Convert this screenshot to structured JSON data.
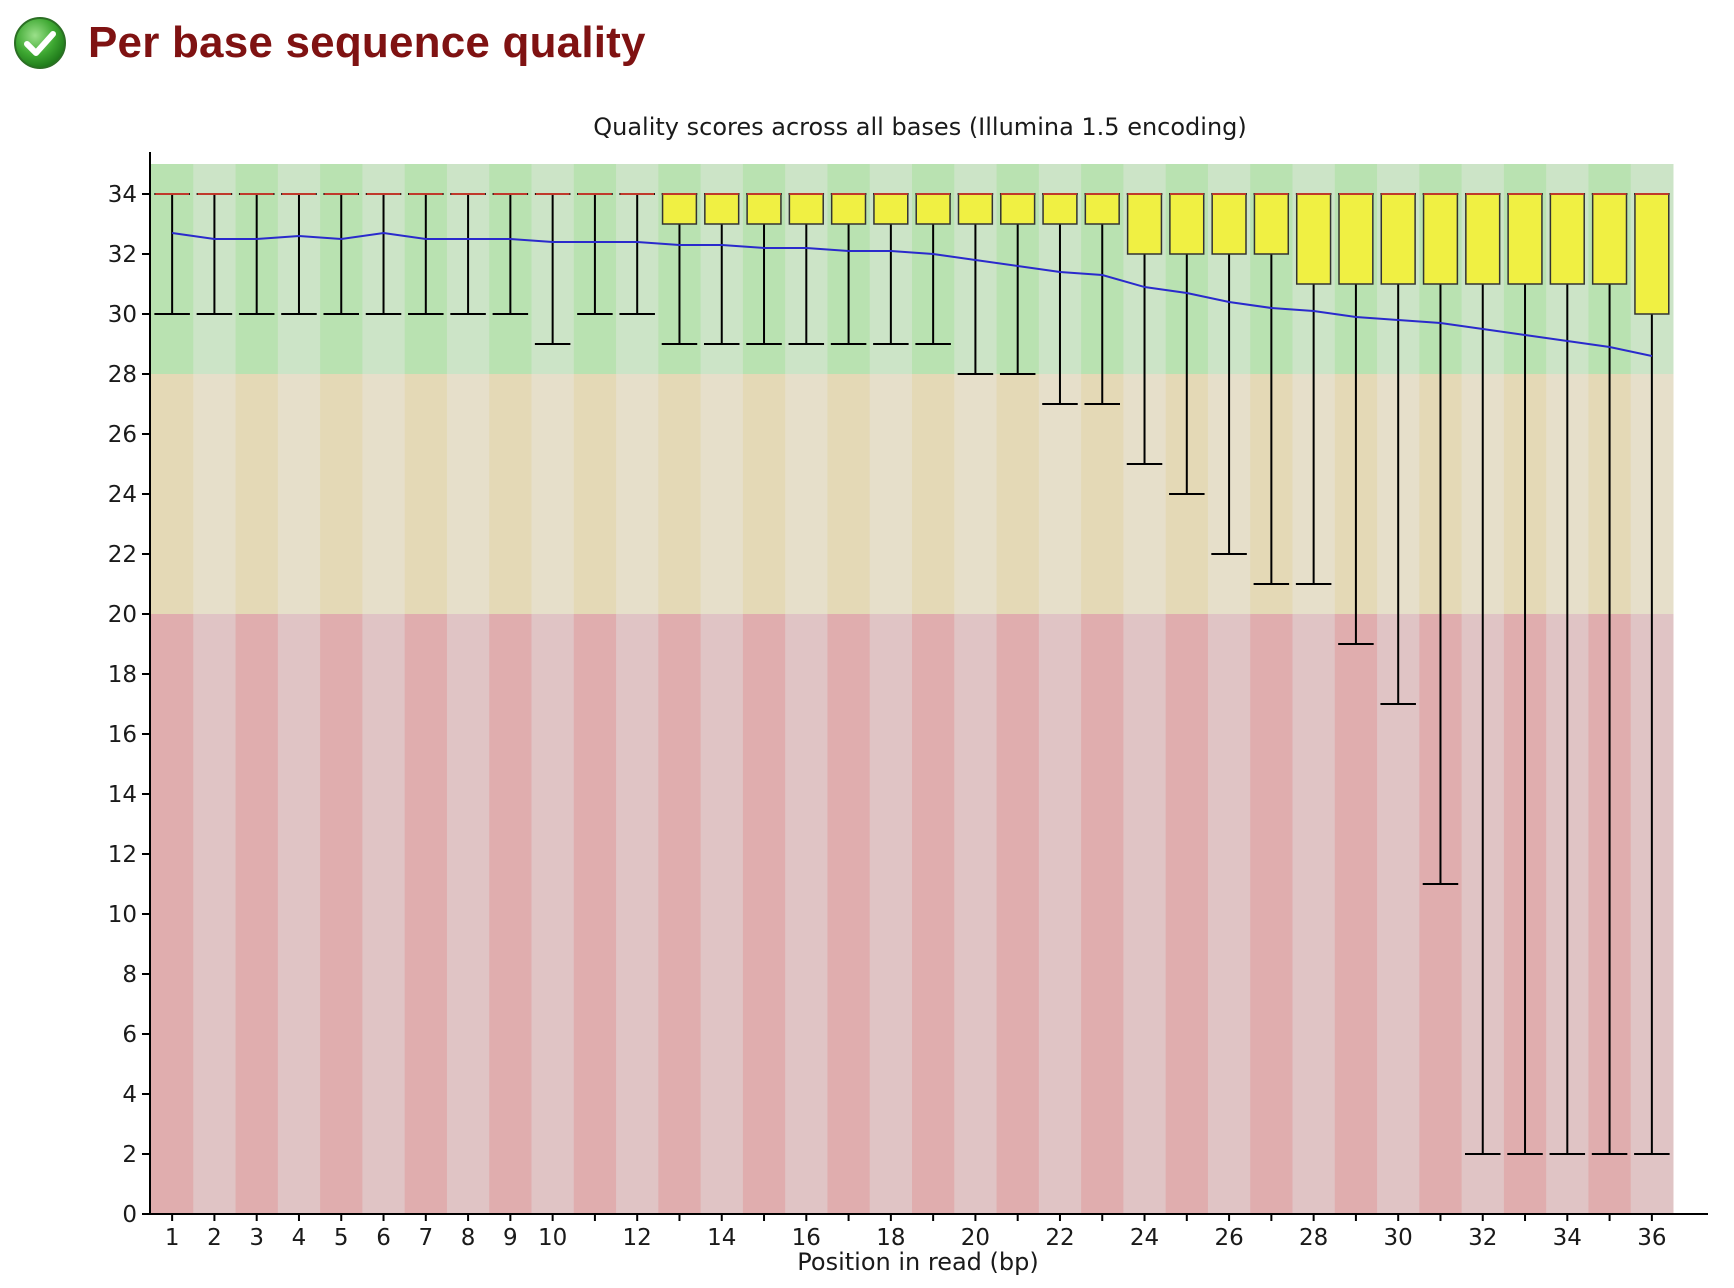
{
  "module": {
    "title": "Per base sequence quality",
    "status": "pass",
    "status_icon": "check-circle-icon"
  },
  "chart_data": {
    "type": "boxplot",
    "title": "Quality scores across all bases (Illumina 1.5 encoding)",
    "xlabel": "Position in read (bp)",
    "ylabel": "",
    "ylim": [
      0,
      35
    ],
    "ytick_values": [
      0,
      2,
      4,
      6,
      8,
      10,
      12,
      14,
      16,
      18,
      20,
      22,
      24,
      26,
      28,
      30,
      32,
      34
    ],
    "ytick_labels": [
      "0",
      "2",
      "4",
      "6",
      "8",
      "10",
      "12",
      "14",
      "16",
      "18",
      "20",
      "22",
      "24",
      "26",
      "28",
      "30",
      "32",
      "34"
    ],
    "xtick_labels": [
      "1",
      "2",
      "3",
      "4",
      "5",
      "6",
      "7",
      "8",
      "9",
      "10",
      "",
      "12",
      "",
      "14",
      "",
      "16",
      "",
      "18",
      "",
      "20",
      "",
      "22",
      "",
      "24",
      "",
      "26",
      "",
      "28",
      "",
      "30",
      "",
      "32",
      "",
      "34",
      "",
      "36"
    ],
    "positions": [
      1,
      2,
      3,
      4,
      5,
      6,
      7,
      8,
      9,
      10,
      11,
      12,
      13,
      14,
      15,
      16,
      17,
      18,
      19,
      20,
      21,
      22,
      23,
      24,
      25,
      26,
      27,
      28,
      29,
      30,
      31,
      32,
      33,
      34,
      35,
      36
    ],
    "q1": [
      34,
      34,
      34,
      34,
      34,
      34,
      34,
      34,
      34,
      34,
      34,
      34,
      33,
      33,
      33,
      33,
      33,
      33,
      33,
      33,
      33,
      33,
      33,
      32,
      32,
      32,
      32,
      31,
      31,
      31,
      31,
      31,
      31,
      31,
      31,
      30
    ],
    "q3": [
      34,
      34,
      34,
      34,
      34,
      34,
      34,
      34,
      34,
      34,
      34,
      34,
      34,
      34,
      34,
      34,
      34,
      34,
      34,
      34,
      34,
      34,
      34,
      34,
      34,
      34,
      34,
      34,
      34,
      34,
      34,
      34,
      34,
      34,
      34,
      34
    ],
    "median": [
      34,
      34,
      34,
      34,
      34,
      34,
      34,
      34,
      34,
      34,
      34,
      34,
      34,
      34,
      34,
      34,
      34,
      34,
      34,
      34,
      34,
      34,
      34,
      34,
      34,
      34,
      34,
      34,
      34,
      34,
      34,
      34,
      34,
      34,
      34,
      34
    ],
    "whisker_low": [
      30,
      30,
      30,
      30,
      30,
      30,
      30,
      30,
      30,
      29,
      30,
      30,
      29,
      29,
      29,
      29,
      29,
      29,
      29,
      28,
      28,
      27,
      27,
      25,
      24,
      22,
      21,
      21,
      19,
      17,
      11,
      2,
      2,
      2,
      2,
      2
    ],
    "whisker_high": [
      34,
      34,
      34,
      34,
      34,
      34,
      34,
      34,
      34,
      34,
      34,
      34,
      34,
      34,
      34,
      34,
      34,
      34,
      34,
      34,
      34,
      34,
      34,
      34,
      34,
      34,
      34,
      34,
      34,
      34,
      34,
      34,
      34,
      34,
      34,
      34
    ],
    "mean": [
      32.7,
      32.5,
      32.5,
      32.6,
      32.5,
      32.7,
      32.5,
      32.5,
      32.5,
      32.4,
      32.4,
      32.4,
      32.3,
      32.3,
      32.2,
      32.2,
      32.1,
      32.1,
      32.0,
      31.8,
      31.6,
      31.4,
      31.3,
      30.9,
      30.7,
      30.4,
      30.2,
      30.1,
      29.9,
      29.8,
      29.7,
      29.5,
      29.3,
      29.1,
      28.9,
      28.6
    ],
    "quality_bands": [
      {
        "name": "good",
        "from": 28,
        "to": 35,
        "colors": [
          "#b9e2b1",
          "#cce4c7"
        ]
      },
      {
        "name": "reasonable",
        "from": 20,
        "to": 28,
        "colors": [
          "#e4d9b6",
          "#e6dfca"
        ]
      },
      {
        "name": "poor",
        "from": 0,
        "to": 20,
        "colors": [
          "#e0adae",
          "#e0c4c5"
        ]
      }
    ],
    "colors": {
      "box_fill": "#f0f043",
      "box_stroke": "#333333",
      "whisker": "#000000",
      "median_line": "#c0392b",
      "mean_line": "#2a2acc",
      "axis": "#000000"
    },
    "grid": false,
    "legend": "none"
  }
}
